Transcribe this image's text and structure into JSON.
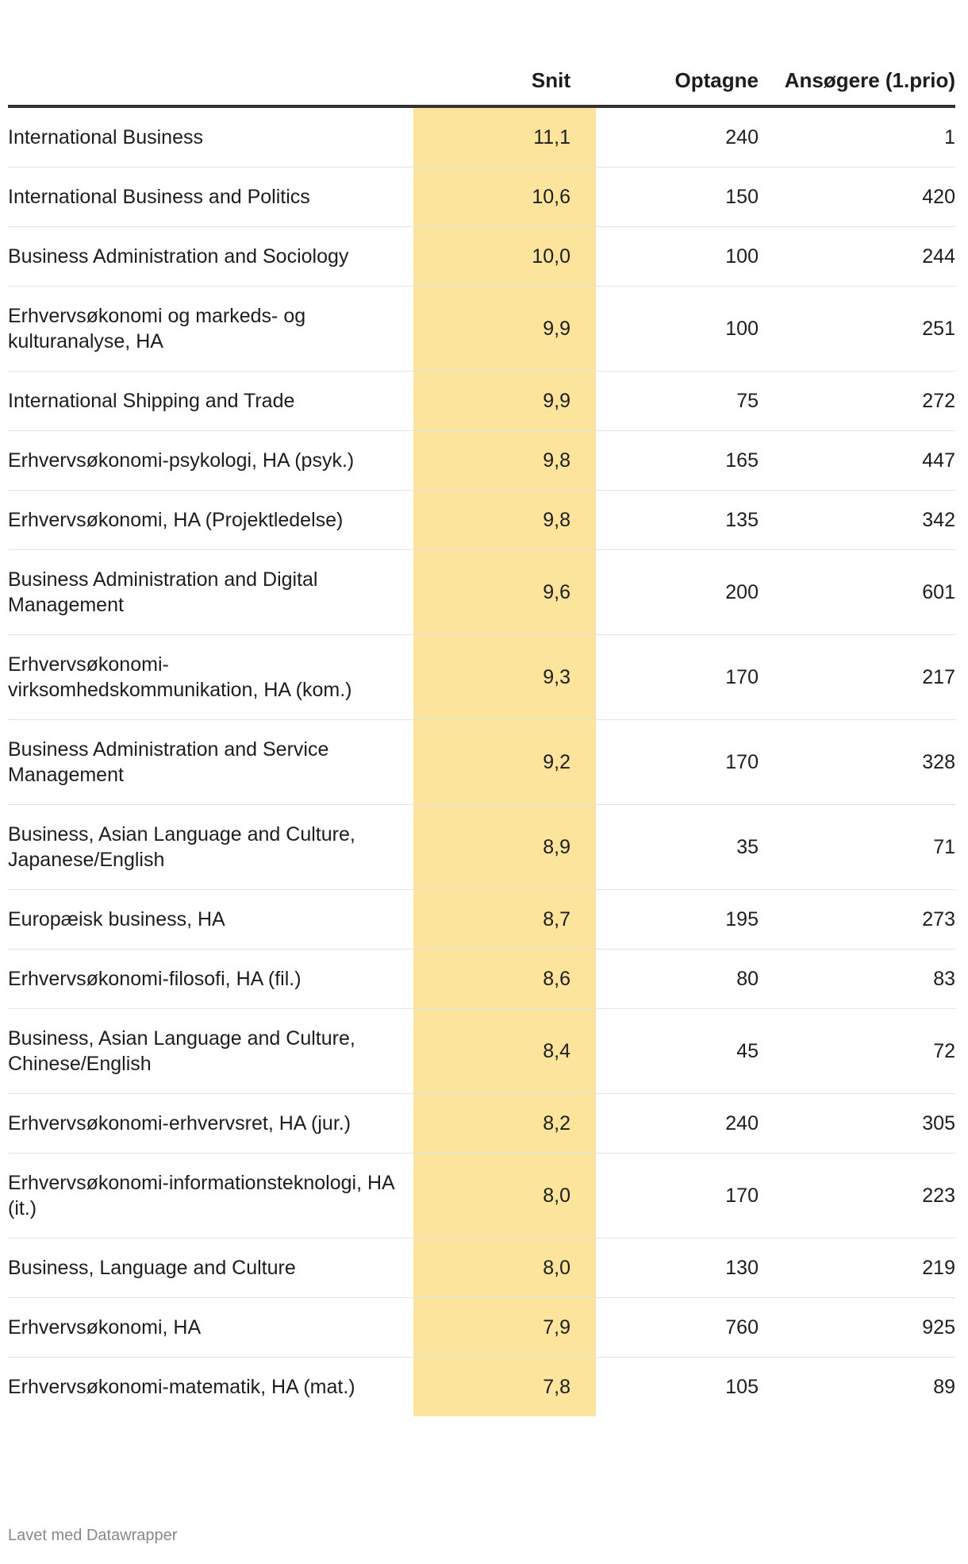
{
  "chart_data": {
    "type": "table",
    "columns": [
      "",
      "Snit",
      "Optagne",
      "Ansøgere (1.prio)"
    ],
    "highlight_color": "#fde49c",
    "rows": [
      {
        "name": "International Business",
        "snit": "11,1",
        "optagne": "240",
        "ansogere": "1"
      },
      {
        "name": "International Business and Politics",
        "snit": "10,6",
        "optagne": "150",
        "ansogere": "420"
      },
      {
        "name": "Business Administration and Sociology",
        "snit": "10,0",
        "optagne": "100",
        "ansogere": "244"
      },
      {
        "name": "Erhvervsøkonomi og markeds- og kulturanalyse, HA",
        "snit": "9,9",
        "optagne": "100",
        "ansogere": "251"
      },
      {
        "name": "International Shipping and Trade",
        "snit": "9,9",
        "optagne": "75",
        "ansogere": "272"
      },
      {
        "name": "Erhvervsøkonomi-psykologi, HA (psyk.)",
        "snit": "9,8",
        "optagne": "165",
        "ansogere": "447"
      },
      {
        "name": "Erhvervsøkonomi, HA (Projektledelse)",
        "snit": "9,8",
        "optagne": "135",
        "ansogere": "342"
      },
      {
        "name": "Business Administration and Digital Management",
        "snit": "9,6",
        "optagne": "200",
        "ansogere": "601"
      },
      {
        "name": "Erhvervsøkonomi-virksomhedskommunikation, HA (kom.)",
        "snit": "9,3",
        "optagne": "170",
        "ansogere": "217"
      },
      {
        "name": "Business Administration and Service Management",
        "snit": "9,2",
        "optagne": "170",
        "ansogere": "328"
      },
      {
        "name": "Business, Asian Language and Culture, Japanese/English",
        "snit": "8,9",
        "optagne": "35",
        "ansogere": "71"
      },
      {
        "name": "Europæisk business, HA",
        "snit": "8,7",
        "optagne": "195",
        "ansogere": "273"
      },
      {
        "name": "Erhvervsøkonomi-filosofi, HA (fil.)",
        "snit": "8,6",
        "optagne": "80",
        "ansogere": "83"
      },
      {
        "name": "Business, Asian Language and Culture, Chinese/English",
        "snit": "8,4",
        "optagne": "45",
        "ansogere": "72"
      },
      {
        "name": "Erhvervsøkonomi-erhvervsret, HA (jur.)",
        "snit": "8,2",
        "optagne": "240",
        "ansogere": "305"
      },
      {
        "name": "Erhvervsøkonomi-informationsteknologi, HA (it.)",
        "snit": "8,0",
        "optagne": "170",
        "ansogere": "223"
      },
      {
        "name": "Business, Language and Culture",
        "snit": "8,0",
        "optagne": "130",
        "ansogere": "219"
      },
      {
        "name": "Erhvervsøkonomi, HA",
        "snit": "7,9",
        "optagne": "760",
        "ansogere": "925"
      },
      {
        "name": "Erhvervsøkonomi-matematik, HA (mat.)",
        "snit": "7,8",
        "optagne": "105",
        "ansogere": "89"
      }
    ]
  },
  "footer": "Lavet med Datawrapper"
}
